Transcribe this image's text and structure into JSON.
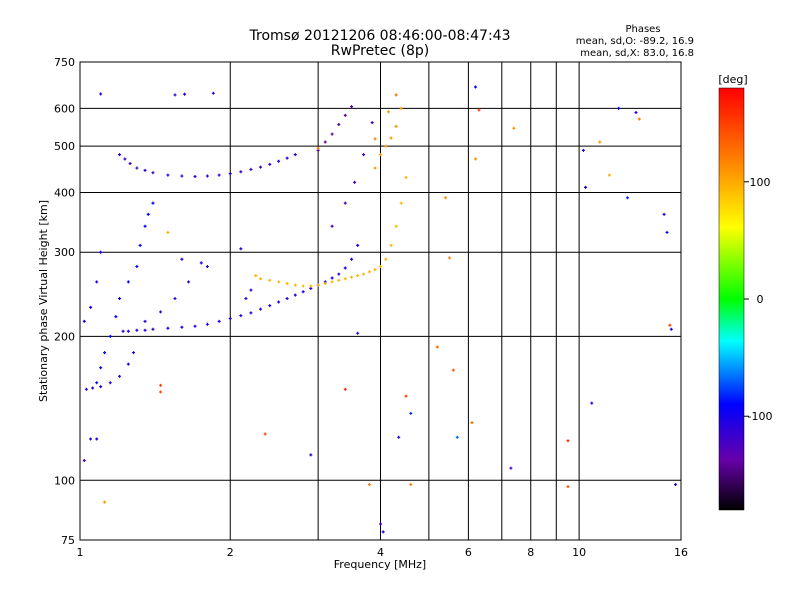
{
  "chart_data": {
    "type": "scatter",
    "title": "Tromsø 20121206 08:46:00-08:47:43",
    "subtitle": "RwPretec (8p)",
    "xlabel": "Frequency [MHz]",
    "ylabel": "Stationary phase Virtual Height [km]",
    "x_scale": "log",
    "y_scale": "log",
    "xlim": [
      1,
      16
    ],
    "ylim": [
      75,
      750
    ],
    "x_ticks": [
      1,
      2,
      4,
      6,
      8,
      10,
      16
    ],
    "x_tick_labels": [
      "1",
      "2",
      "4",
      "6",
      "8",
      "10",
      "16"
    ],
    "x_grid": [
      1,
      2,
      3,
      4,
      5,
      6,
      7,
      8,
      9,
      10,
      16
    ],
    "y_ticks": [
      75,
      100,
      200,
      300,
      400,
      500,
      600,
      750
    ],
    "y_tick_labels": [
      "75",
      "100",
      "200",
      "300",
      "400",
      "500",
      "600",
      "750"
    ],
    "y_grid": [
      100,
      200,
      300,
      400,
      500,
      600
    ],
    "grid": true,
    "phases_box": {
      "title": "Phases",
      "line1": "mean, sd,O: -89.2, 16.9",
      "line2": "mean, sd,X:  83.0, 16.8"
    },
    "colorbar": {
      "label": "[deg]",
      "range": [
        -180,
        180
      ],
      "ticks": [
        100,
        0,
        -100
      ],
      "tick_labels": [
        "100",
        "0",
        "-100"
      ]
    },
    "traces": [
      {
        "x": [
          1.03,
          1.06,
          1.1,
          1.15,
          1.2,
          1.25,
          1.28
        ],
        "y": [
          155,
          156,
          157,
          160,
          165,
          175,
          185
        ],
        "phase": -110
      },
      {
        "x": [
          1.22,
          1.25,
          1.3,
          1.35,
          1.4,
          1.5,
          1.6,
          1.7,
          1.8,
          1.9,
          2.0,
          2.1,
          2.2,
          2.3,
          2.4,
          2.5,
          2.6,
          2.7,
          2.8,
          2.9,
          3.0,
          3.1,
          3.2,
          3.3,
          3.4,
          3.5,
          3.6
        ],
        "y": [
          205,
          205,
          206,
          206,
          207,
          208,
          209,
          210,
          212,
          215,
          218,
          221,
          224,
          228,
          232,
          236,
          240,
          244,
          248,
          252,
          256,
          260,
          265,
          270,
          278,
          290,
          310
        ],
        "phase": -105
      },
      {
        "x": [
          1.2,
          1.23,
          1.26,
          1.3,
          1.35,
          1.4,
          1.5,
          1.6,
          1.7,
          1.8,
          1.9,
          2.0,
          2.1,
          2.2,
          2.3,
          2.4,
          2.5,
          2.6,
          2.7
        ],
        "y": [
          480,
          470,
          460,
          450,
          445,
          440,
          435,
          433,
          432,
          433,
          435,
          438,
          442,
          447,
          452,
          458,
          465,
          472,
          480
        ],
        "phase": -115
      },
      {
        "x": [
          3.2,
          3.4,
          3.55,
          3.7,
          3.85
        ],
        "y": [
          340,
          380,
          420,
          480,
          560
        ],
        "phase": -125
      },
      {
        "x": [
          3.0,
          3.1,
          3.2,
          3.3,
          3.4,
          3.5
        ],
        "y": [
          490,
          510,
          530,
          555,
          580,
          605
        ],
        "phase": -140
      },
      {
        "x": [
          2.25,
          2.3,
          2.4,
          2.5,
          2.6,
          2.7,
          2.8,
          2.9,
          3.0,
          3.1,
          3.2,
          3.3,
          3.4,
          3.5,
          3.6,
          3.7,
          3.8,
          3.9,
          4.0,
          4.1,
          4.2,
          4.3,
          4.4,
          4.5
        ],
        "y": [
          268,
          264,
          262,
          260,
          258,
          256,
          255,
          255,
          256,
          258,
          260,
          262,
          264,
          266,
          268,
          270,
          273,
          276,
          280,
          290,
          310,
          340,
          380,
          430
        ],
        "phase": 95
      },
      {
        "x": [
          3.9,
          4.0,
          4.1,
          4.2,
          4.3,
          4.4
        ],
        "y": [
          450,
          480,
          500,
          520,
          550,
          600
        ],
        "phase": 110
      },
      {
        "x": [
          1.08,
          1.1,
          1.12,
          1.15,
          1.18,
          1.2,
          1.25,
          1.3,
          1.32,
          1.35,
          1.37,
          1.4
        ],
        "y": [
          160,
          172,
          185,
          200,
          220,
          240,
          260,
          280,
          310,
          340,
          360,
          380
        ],
        "phase": -90
      },
      {
        "x": [
          1.35,
          1.45,
          1.55,
          1.65,
          1.8
        ],
        "y": [
          215,
          225,
          240,
          260,
          280
        ],
        "phase": -110
      },
      {
        "x": [
          1.02,
          1.05,
          1.08,
          1.1
        ],
        "y": [
          215,
          230,
          260,
          300
        ],
        "phase": -100
      }
    ],
    "points": [
      {
        "x": 1.1,
        "y": 643,
        "phase": -110
      },
      {
        "x": 1.55,
        "y": 640,
        "phase": -115
      },
      {
        "x": 1.62,
        "y": 642,
        "phase": -115
      },
      {
        "x": 1.85,
        "y": 645,
        "phase": -118
      },
      {
        "x": 1.02,
        "y": 110,
        "phase": -120
      },
      {
        "x": 1.05,
        "y": 122,
        "phase": -110
      },
      {
        "x": 1.08,
        "y": 122,
        "phase": -100
      },
      {
        "x": 1.12,
        "y": 90,
        "phase": 110
      },
      {
        "x": 1.45,
        "y": 158,
        "phase": 150
      },
      {
        "x": 1.45,
        "y": 153,
        "phase": 140
      },
      {
        "x": 2.35,
        "y": 125,
        "phase": 150
      },
      {
        "x": 2.9,
        "y": 113,
        "phase": -110
      },
      {
        "x": 3.4,
        "y": 155,
        "phase": 160
      },
      {
        "x": 3.6,
        "y": 203,
        "phase": -115
      },
      {
        "x": 3.8,
        "y": 98,
        "phase": 120
      },
      {
        "x": 4.0,
        "y": 81,
        "phase": -120
      },
      {
        "x": 4.05,
        "y": 78,
        "phase": -100
      },
      {
        "x": 4.35,
        "y": 123,
        "phase": -110
      },
      {
        "x": 4.5,
        "y": 150,
        "phase": 150
      },
      {
        "x": 4.6,
        "y": 98,
        "phase": 120
      },
      {
        "x": 4.6,
        "y": 138,
        "phase": -80
      },
      {
        "x": 5.4,
        "y": 390,
        "phase": 110
      },
      {
        "x": 5.2,
        "y": 190,
        "phase": 130
      },
      {
        "x": 5.6,
        "y": 170,
        "phase": 140
      },
      {
        "x": 5.7,
        "y": 123,
        "phase": -70
      },
      {
        "x": 6.1,
        "y": 132,
        "phase": 130
      },
      {
        "x": 6.2,
        "y": 665,
        "phase": -90
      },
      {
        "x": 6.3,
        "y": 595,
        "phase": 150
      },
      {
        "x": 6.2,
        "y": 470,
        "phase": 110
      },
      {
        "x": 5.5,
        "y": 292,
        "phase": 120
      },
      {
        "x": 7.3,
        "y": 106,
        "phase": -120
      },
      {
        "x": 7.4,
        "y": 545,
        "phase": 110
      },
      {
        "x": 9.5,
        "y": 121,
        "phase": 160
      },
      {
        "x": 9.5,
        "y": 97,
        "phase": 140
      },
      {
        "x": 10.2,
        "y": 490,
        "phase": -110
      },
      {
        "x": 10.3,
        "y": 410,
        "phase": -100
      },
      {
        "x": 10.6,
        "y": 145,
        "phase": -120
      },
      {
        "x": 11.0,
        "y": 510,
        "phase": 110
      },
      {
        "x": 11.5,
        "y": 435,
        "phase": 100
      },
      {
        "x": 12.0,
        "y": 600,
        "phase": -90
      },
      {
        "x": 12.5,
        "y": 390,
        "phase": -80
      },
      {
        "x": 13.0,
        "y": 588,
        "phase": -100
      },
      {
        "x": 13.2,
        "y": 570,
        "phase": 120
      },
      {
        "x": 14.8,
        "y": 360,
        "phase": -110
      },
      {
        "x": 15.0,
        "y": 330,
        "phase": -90
      },
      {
        "x": 15.2,
        "y": 211,
        "phase": 150
      },
      {
        "x": 15.3,
        "y": 207,
        "phase": -110
      },
      {
        "x": 15.6,
        "y": 98,
        "phase": -110
      },
      {
        "x": 1.5,
        "y": 330,
        "phase": 100
      },
      {
        "x": 1.6,
        "y": 290,
        "phase": -100
      },
      {
        "x": 1.75,
        "y": 285,
        "phase": -100
      },
      {
        "x": 2.1,
        "y": 305,
        "phase": -110
      },
      {
        "x": 3.0,
        "y": 495,
        "phase": 120
      },
      {
        "x": 3.9,
        "y": 518,
        "phase": 120
      },
      {
        "x": 4.3,
        "y": 640,
        "phase": 130
      },
      {
        "x": 4.15,
        "y": 590,
        "phase": 110
      },
      {
        "x": 2.15,
        "y": 240,
        "phase": -110
      },
      {
        "x": 2.2,
        "y": 250,
        "phase": -100
      }
    ]
  }
}
